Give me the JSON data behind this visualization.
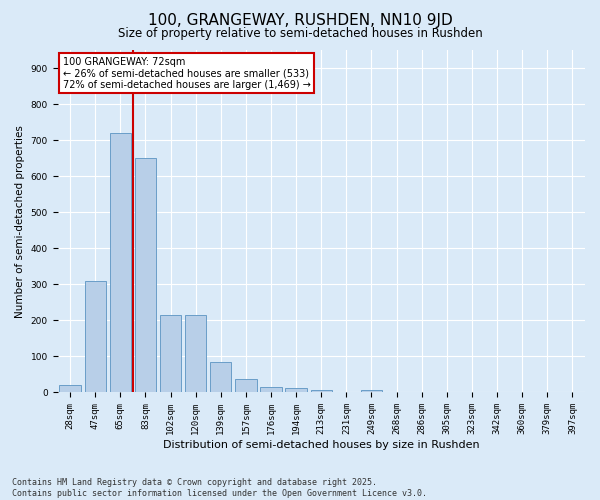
{
  "title1": "100, GRANGEWAY, RUSHDEN, NN10 9JD",
  "title2": "Size of property relative to semi-detached houses in Rushden",
  "xlabel": "Distribution of semi-detached houses by size in Rushden",
  "ylabel": "Number of semi-detached properties",
  "categories": [
    "28sqm",
    "47sqm",
    "65sqm",
    "83sqm",
    "102sqm",
    "120sqm",
    "139sqm",
    "157sqm",
    "176sqm",
    "194sqm",
    "213sqm",
    "231sqm",
    "249sqm",
    "268sqm",
    "286sqm",
    "305sqm",
    "323sqm",
    "342sqm",
    "360sqm",
    "379sqm",
    "397sqm"
  ],
  "values": [
    22,
    310,
    720,
    650,
    215,
    215,
    85,
    38,
    15,
    12,
    8,
    0,
    8,
    0,
    0,
    0,
    0,
    0,
    0,
    0,
    0
  ],
  "bar_color": "#b8cfe8",
  "bar_edge_color": "#6a9ec8",
  "vline_x_idx": 2,
  "vline_color": "#cc0000",
  "annotation_text": "100 GRANGEWAY: 72sqm\n← 26% of semi-detached houses are smaller (533)\n72% of semi-detached houses are larger (1,469) →",
  "annotation_box_color": "#ffffff",
  "annotation_box_edge": "#cc0000",
  "ylim": [
    0,
    950
  ],
  "yticks": [
    0,
    100,
    200,
    300,
    400,
    500,
    600,
    700,
    800,
    900
  ],
  "bg_color": "#daeaf8",
  "plot_bg_color": "#daeaf8",
  "footer": "Contains HM Land Registry data © Crown copyright and database right 2025.\nContains public sector information licensed under the Open Government Licence v3.0.",
  "title1_fontsize": 11,
  "title2_fontsize": 8.5,
  "xlabel_fontsize": 8,
  "ylabel_fontsize": 7.5,
  "tick_fontsize": 6.5,
  "footer_fontsize": 6,
  "ann_fontsize": 7
}
